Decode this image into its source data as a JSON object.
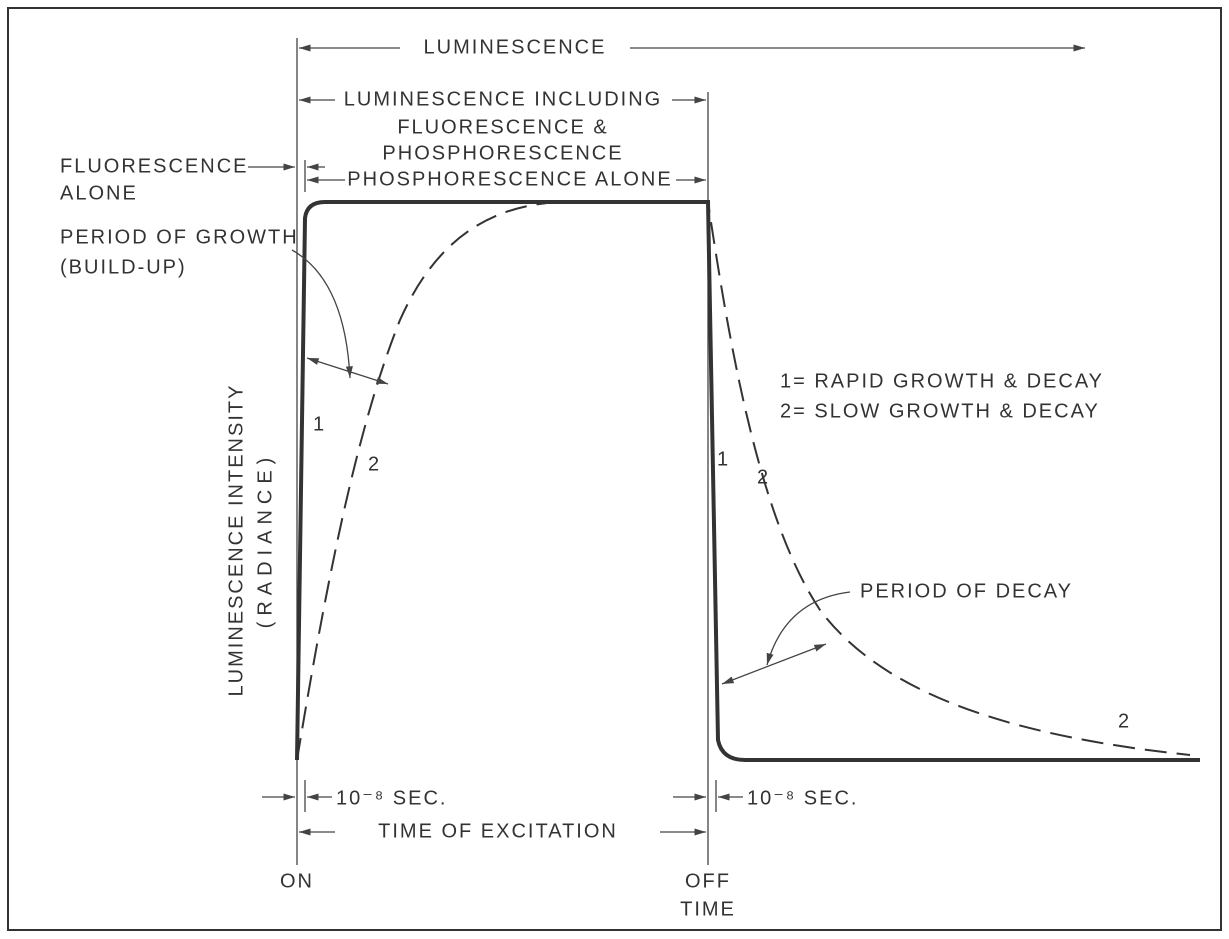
{
  "title": "LUMINESCENCE",
  "luminescence_including": [
    "LUMINESCENCE INCLUDING",
    "FLUORESCENCE &",
    "PHOSPHORESCENCE"
  ],
  "phosphorescence_alone": "PHOSPHORESCENCE ALONE",
  "fluorescence_alone": [
    "FLUORESCENCE",
    "ALONE"
  ],
  "period_of_growth": [
    "PERIOD OF GROWTH",
    "(BUILD-UP)"
  ],
  "legend": [
    "1= RAPID GROWTH & DECAY",
    "2= SLOW GROWTH & DECAY"
  ],
  "y_axis": [
    "LUMINESCENCE INTENSITY",
    "(RADIANCE)"
  ],
  "curve_labels": [
    "1",
    "2",
    "1",
    "2",
    "2"
  ],
  "period_of_decay": "PERIOD OF DECAY",
  "interval_on": "10⁻⁸ SEC.",
  "interval_off": "10⁻⁸ SEC.",
  "time_of_excitation": "TIME OF EXCITATION",
  "on": "ON",
  "off": [
    "OFF",
    "TIME"
  ]
}
